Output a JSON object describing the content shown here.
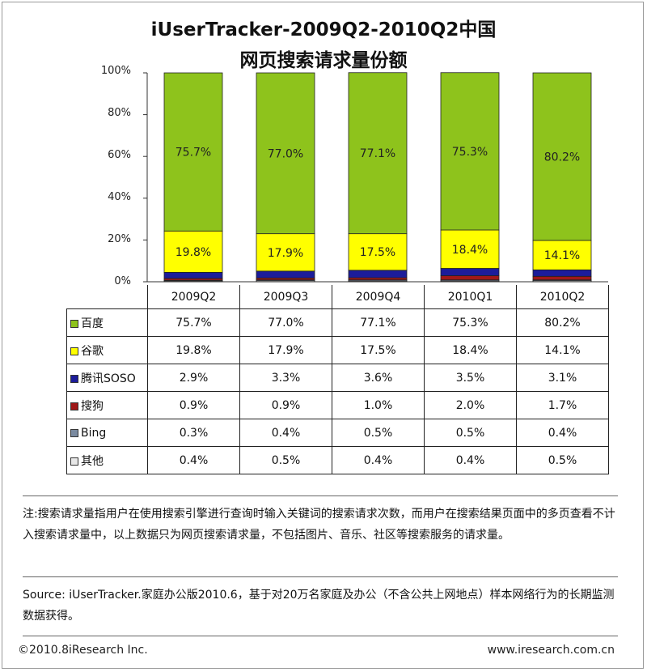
{
  "title_line1": "iUserTracker-2009Q2-2010Q2中国",
  "title_line2": "网页搜索请求量份额",
  "chart_data": {
    "type": "bar",
    "stacked": true,
    "categories": [
      "2009Q2",
      "2009Q3",
      "2009Q4",
      "2010Q1",
      "2010Q2"
    ],
    "ylim": [
      0,
      100
    ],
    "yticks": [
      "0%",
      "20%",
      "40%",
      "60%",
      "80%",
      "100%"
    ],
    "series": [
      {
        "name": "百度",
        "color": "#8ec31c",
        "values": [
          75.7,
          77.0,
          77.1,
          75.3,
          80.2
        ],
        "labels": [
          "75.7%",
          "77.0%",
          "77.1%",
          "75.3%",
          "80.2%"
        ],
        "show_in_bar": true
      },
      {
        "name": "谷歌",
        "color": "#ffff00",
        "values": [
          19.8,
          17.9,
          17.5,
          18.4,
          14.1
        ],
        "labels": [
          "19.8%",
          "17.9%",
          "17.5%",
          "18.4%",
          "14.1%"
        ],
        "show_in_bar": true
      },
      {
        "name": "腾讯SOSO",
        "color": "#1c1c9a",
        "values": [
          2.9,
          3.3,
          3.6,
          3.5,
          3.1
        ],
        "labels": [
          "2.9%",
          "3.3%",
          "3.6%",
          "3.5%",
          "3.1%"
        ],
        "show_in_bar": false
      },
      {
        "name": "搜狗",
        "color": "#a01818",
        "values": [
          0.9,
          0.9,
          1.0,
          2.0,
          1.7
        ],
        "labels": [
          "0.9%",
          "0.9%",
          "1.0%",
          "2.0%",
          "1.7%"
        ],
        "show_in_bar": false
      },
      {
        "name": "Bing",
        "color": "#7a8aa0",
        "values": [
          0.3,
          0.4,
          0.5,
          0.5,
          0.4
        ],
        "labels": [
          "0.3%",
          "0.4%",
          "0.5%",
          "0.5%",
          "0.4%"
        ],
        "show_in_bar": false
      },
      {
        "name": "其他",
        "color": "#e8e8e8",
        "values": [
          0.4,
          0.5,
          0.4,
          0.4,
          0.5
        ],
        "labels": [
          "0.4%",
          "0.5%",
          "0.4%",
          "0.4%",
          "0.5%"
        ],
        "show_in_bar": false
      }
    ]
  },
  "note": "注:搜索请求量指用户在使用搜索引擎进行查询时输入关键词的搜索请求次数，而用户在搜索结果页面中的多页查看不计入搜索请求量中，以上数据只为网页搜索请求量，不包括图片、音乐、社区等搜索服务的请求量。",
  "source": "Source: iUserTracker.家庭办公版2010.6，基于对20万名家庭及办公（不含公共上网地点）样本网络行为的长期监测数据获得。",
  "footer_left": "©2010.8iResearch Inc.",
  "footer_right": "www.iresearch.com.cn"
}
